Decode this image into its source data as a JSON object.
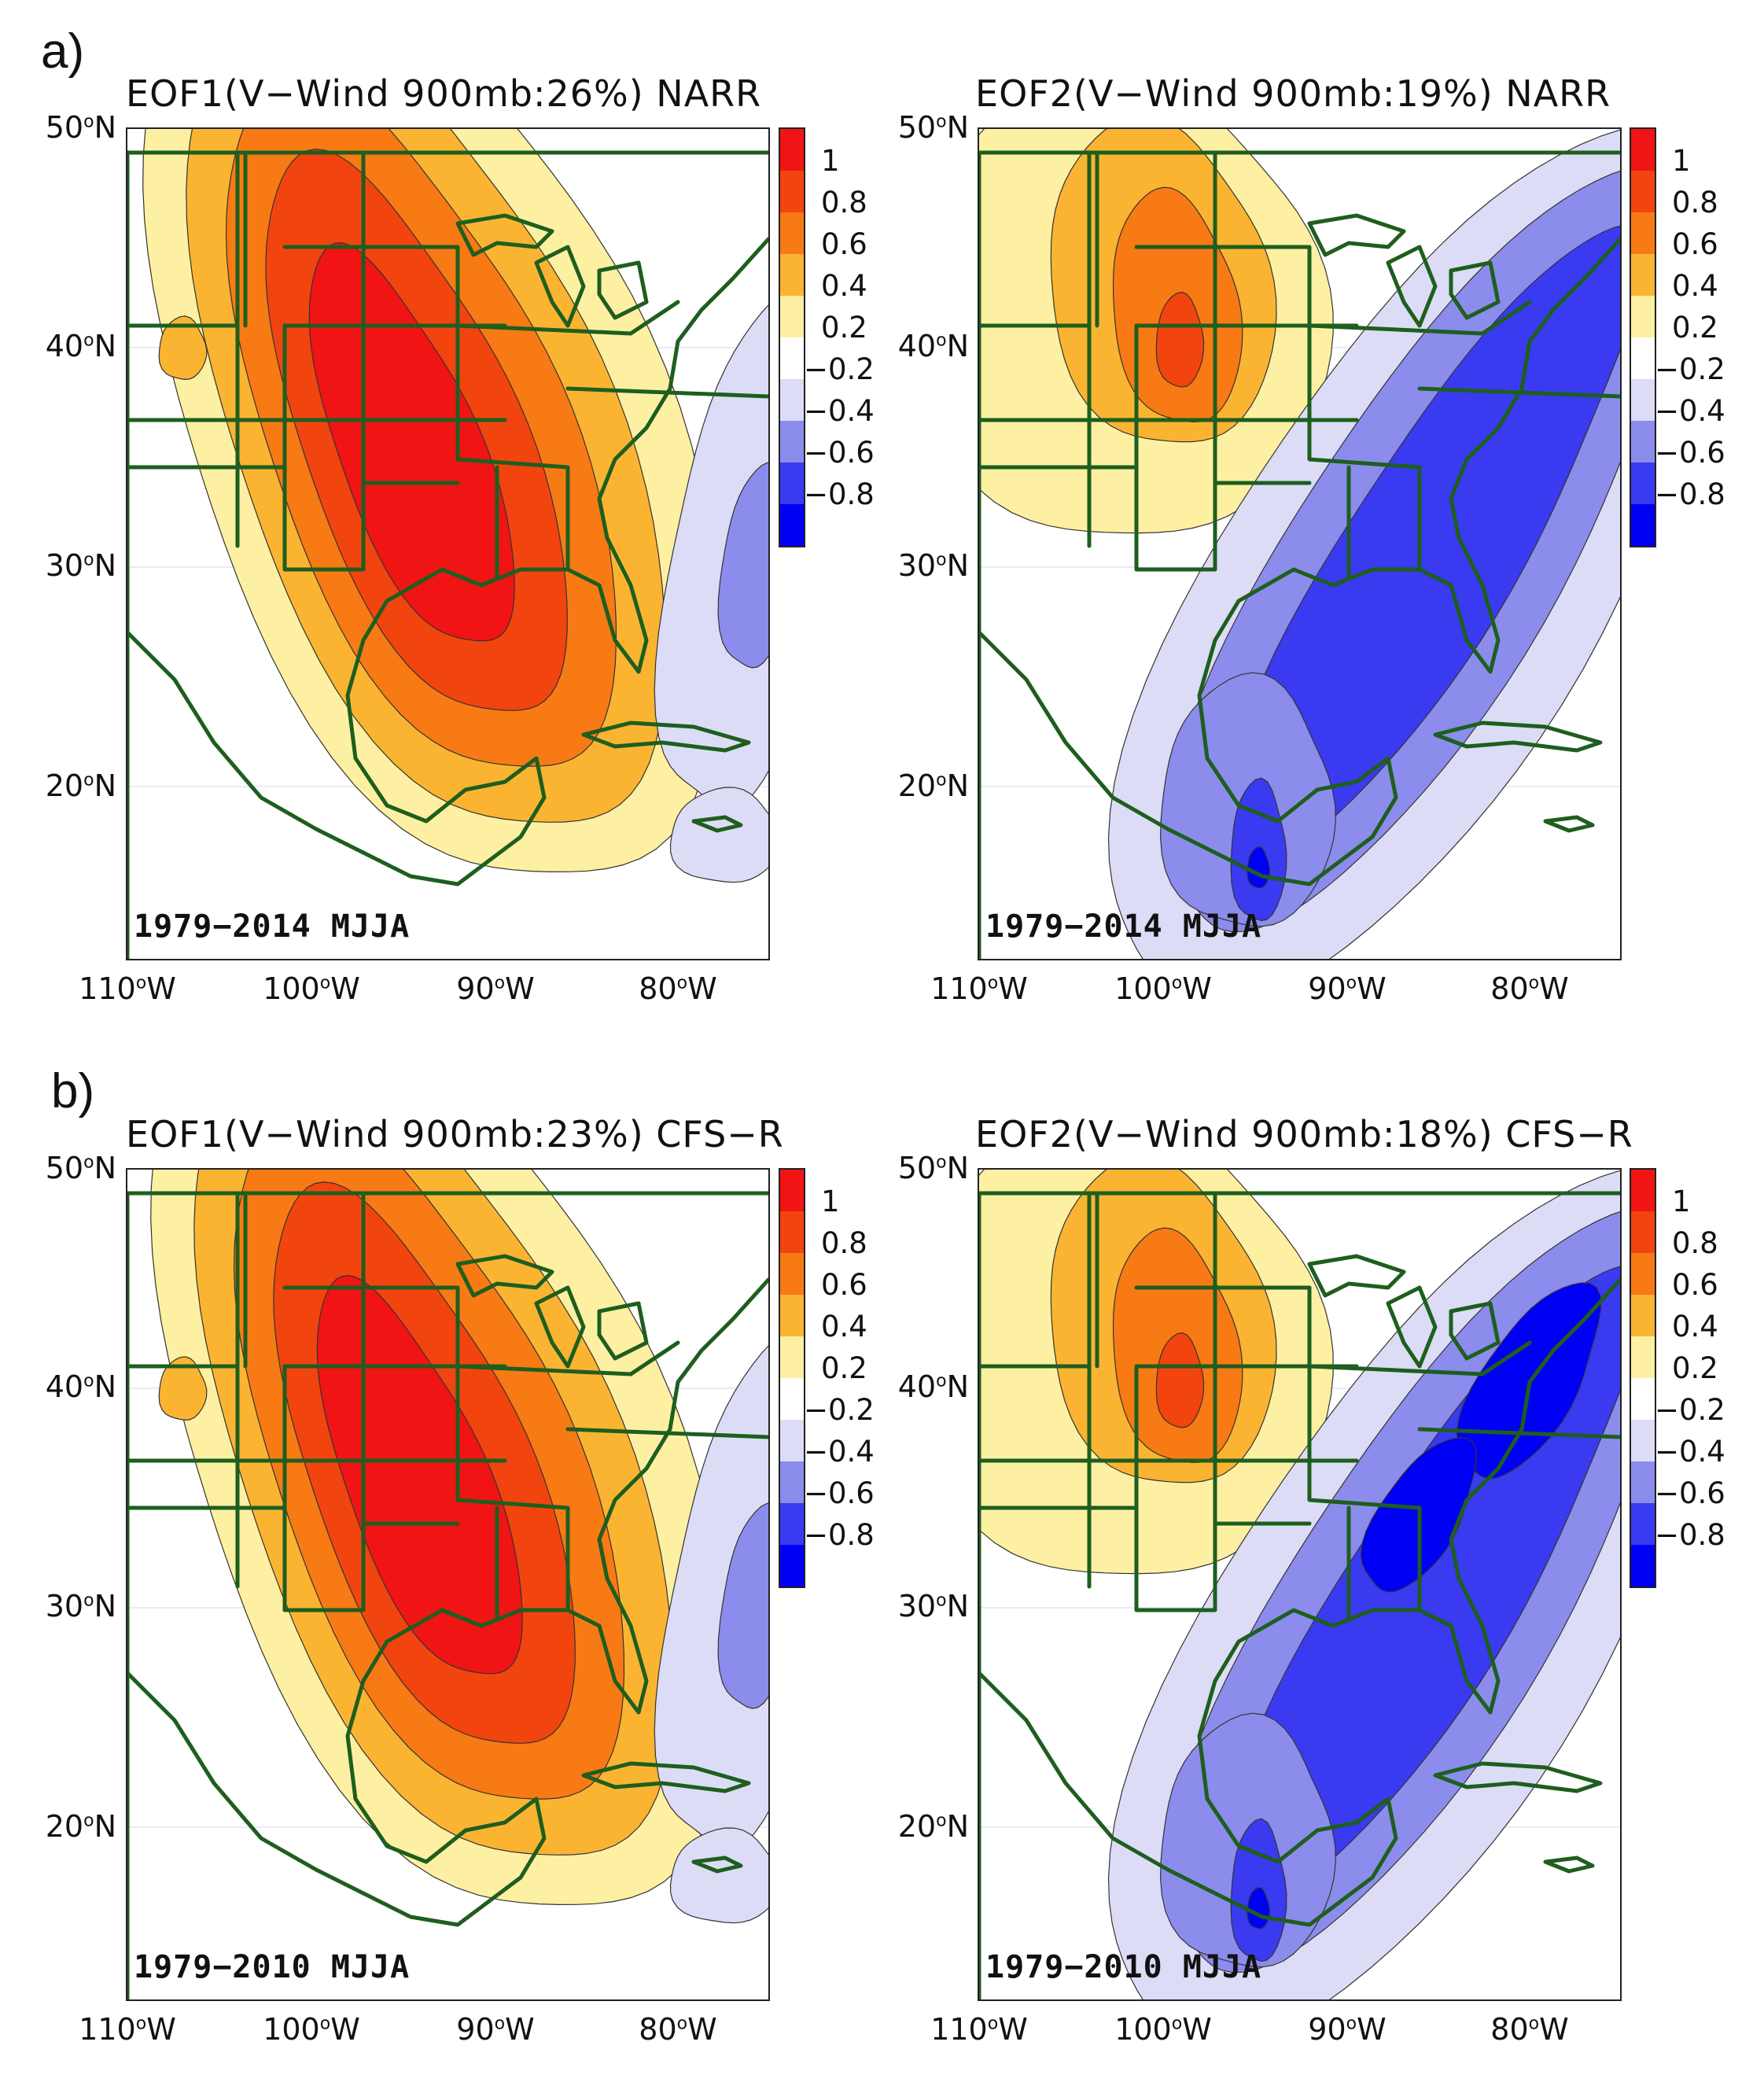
{
  "figure": {
    "panel_labels": [
      "a)",
      "b)"
    ],
    "lat_labels": [
      "50ºN",
      "40ºN",
      "30ºN",
      "20ºN"
    ],
    "lon_labels": [
      "110ºW",
      "100ºW",
      "90ºW",
      "80ºW"
    ],
    "colorbar_labels": [
      "1",
      "0.8",
      "0.6",
      "0.4",
      "0.2",
      "−0.2",
      "−0.4",
      "−0.6",
      "−0.8"
    ],
    "colorbar_colors": [
      "#f01414",
      "#f2440f",
      "#f77a14",
      "#fbb432",
      "#fdf0a2",
      "#ffffff",
      "#dcdcf6",
      "#8c8cec",
      "#3a3af0",
      "#0000f5"
    ]
  },
  "panels": [
    {
      "title": "EOF1(V−Wind 900mb:26%) NARR",
      "period": "1979−2014 MJJA",
      "mode": "EOF1"
    },
    {
      "title": "EOF2(V−Wind 900mb:19%) NARR",
      "period": "1979−2014 MJJA",
      "mode": "EOF2"
    },
    {
      "title": "EOF1(V−Wind 900mb:23%) CFS−R",
      "period": "1979−2010 MJJA",
      "mode": "EOF1"
    },
    {
      "title": "EOF2(V−Wind 900mb:18%) CFS−R",
      "period": "1979−2010 MJJA",
      "mode": "EOF2"
    }
  ],
  "colors": {
    "coast": "#1e5e1e",
    "contour": "#333333"
  }
}
